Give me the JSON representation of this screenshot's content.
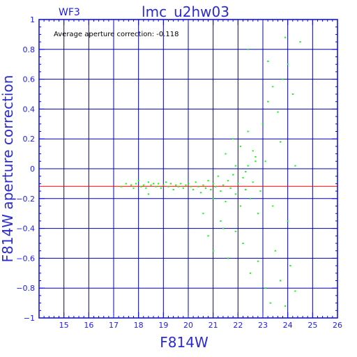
{
  "header": {
    "chip": "WF3",
    "title": "lmc_u2hw03"
  },
  "annotation": "Average aperture correction: -0.118",
  "colors": {
    "axes": "#0000ff",
    "grid": "#0000aa",
    "points": "#00ff00",
    "reference_line": "#ff0000",
    "text": "#1a1aff"
  },
  "chart_data": {
    "type": "scatter",
    "title": "lmc_u2hw03",
    "xlabel": "F814W",
    "ylabel": "F814W aperture correction",
    "xlim": [
      14,
      26
    ],
    "ylim": [
      -1,
      1
    ],
    "xticks": [
      15,
      16,
      17,
      18,
      19,
      20,
      21,
      22,
      23,
      24,
      25,
      26
    ],
    "yticks": [
      -1,
      -0.8,
      -0.6,
      -0.4,
      -0.2,
      0,
      0.2,
      0.4,
      0.6,
      0.8,
      1
    ],
    "xtick_labels": [
      "15",
      "16",
      "17",
      "18",
      "19",
      "20",
      "21",
      "22",
      "23",
      "24",
      "25",
      "26"
    ],
    "ytick_labels": [
      "−1",
      "−0.8",
      "−0.6",
      "−0.4",
      "−0.2",
      "0",
      "0.2",
      "0.4",
      "0.6",
      "0.8",
      "1"
    ],
    "grid": true,
    "reference_line": {
      "y": -0.118
    },
    "points": [
      [
        17.3,
        -0.12
      ],
      [
        17.5,
        -0.1
      ],
      [
        17.7,
        -0.11
      ],
      [
        17.8,
        -0.13
      ],
      [
        17.9,
        -0.1
      ],
      [
        18.0,
        -0.08
      ],
      [
        18.1,
        -0.12
      ],
      [
        18.2,
        -0.11
      ],
      [
        18.3,
        -0.13
      ],
      [
        18.4,
        -0.09
      ],
      [
        18.4,
        -0.17
      ],
      [
        18.5,
        -0.11
      ],
      [
        18.6,
        -0.1
      ],
      [
        18.7,
        -0.12
      ],
      [
        18.8,
        -0.1
      ],
      [
        18.9,
        -0.13
      ],
      [
        19.0,
        -0.11
      ],
      [
        19.1,
        -0.09
      ],
      [
        19.2,
        -0.12
      ],
      [
        19.3,
        -0.1
      ],
      [
        19.4,
        -0.14
      ],
      [
        19.5,
        -0.11
      ],
      [
        19.6,
        -0.12
      ],
      [
        19.7,
        -0.1
      ],
      [
        19.8,
        -0.13
      ],
      [
        19.9,
        -0.11
      ],
      [
        20.0,
        -0.1
      ],
      [
        20.1,
        -0.12
      ],
      [
        20.2,
        -0.14
      ],
      [
        20.3,
        -0.09
      ],
      [
        20.4,
        -0.12
      ],
      [
        20.5,
        -0.16
      ],
      [
        20.6,
        -0.11
      ],
      [
        20.7,
        -0.13
      ],
      [
        20.8,
        -0.08
      ],
      [
        20.9,
        -0.14
      ],
      [
        21.0,
        -0.1
      ],
      [
        21.0,
        -0.2
      ],
      [
        21.1,
        -0.12
      ],
      [
        21.2,
        -0.05
      ],
      [
        21.3,
        -0.15
      ],
      [
        21.4,
        -0.11
      ],
      [
        21.5,
        -0.22
      ],
      [
        21.6,
        -0.08
      ],
      [
        21.7,
        -0.13
      ],
      [
        21.8,
        -0.04
      ],
      [
        21.9,
        -0.17
      ],
      [
        22.0,
        -0.1
      ],
      [
        22.1,
        -0.25
      ],
      [
        22.2,
        -0.06
      ],
      [
        22.3,
        -0.14
      ],
      [
        22.4,
        0.02
      ],
      [
        22.5,
        -0.2
      ],
      [
        22.6,
        -0.09
      ],
      [
        22.7,
        0.05
      ],
      [
        22.8,
        -0.3
      ],
      [
        20.6,
        -0.3
      ],
      [
        20.8,
        -0.45
      ],
      [
        21.0,
        -0.55
      ],
      [
        21.3,
        -0.35
      ],
      [
        21.6,
        -0.6
      ],
      [
        21.9,
        -0.42
      ],
      [
        22.2,
        -0.5
      ],
      [
        22.5,
        -0.7
      ],
      [
        22.8,
        -0.62
      ],
      [
        23.1,
        -0.8
      ],
      [
        23.3,
        -0.9
      ],
      [
        23.5,
        -0.55
      ],
      [
        23.7,
        -0.75
      ],
      [
        23.9,
        -0.92
      ],
      [
        24.1,
        -0.65
      ],
      [
        24.3,
        -0.82
      ],
      [
        21.5,
        0.1
      ],
      [
        21.8,
        0.2
      ],
      [
        22.1,
        0.15
      ],
      [
        22.4,
        0.25
      ],
      [
        22.7,
        0.08
      ],
      [
        23.0,
        0.3
      ],
      [
        23.2,
        0.45
      ],
      [
        23.4,
        0.55
      ],
      [
        23.6,
        0.38
      ],
      [
        23.8,
        0.6
      ],
      [
        24.0,
        0.7
      ],
      [
        24.2,
        0.5
      ],
      [
        22.4,
        0.8
      ],
      [
        23.2,
        0.72
      ],
      [
        23.9,
        0.88
      ],
      [
        24.5,
        0.85
      ],
      [
        21.9,
        0.02
      ],
      [
        22.3,
        -0.02
      ],
      [
        22.6,
        0.12
      ],
      [
        22.9,
        -0.15
      ],
      [
        23.1,
        0.05
      ],
      [
        23.4,
        -0.25
      ],
      [
        23.7,
        0.18
      ],
      [
        24.0,
        -0.35
      ],
      [
        24.3,
        0.02
      ],
      [
        21.4,
        -0.4
      ]
    ]
  }
}
